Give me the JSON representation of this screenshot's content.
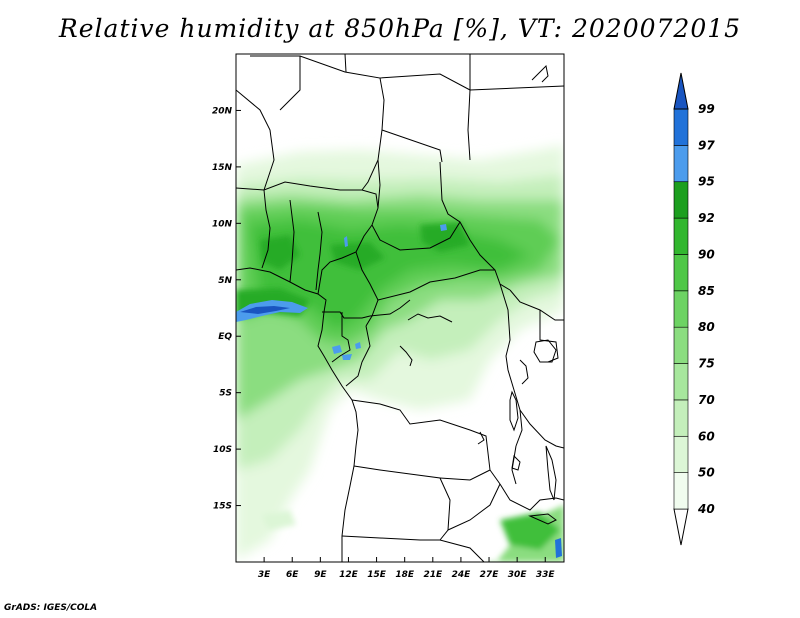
{
  "title": "Relative humidity at 850hPa [%], VT: 2020072015",
  "credit": "GrADS: IGES/COLA",
  "map": {
    "lon_range": [
      0,
      35
    ],
    "lat_range": [
      -20,
      25
    ],
    "x_ticks": [
      "3E",
      "6E",
      "9E",
      "12E",
      "15E",
      "18E",
      "21E",
      "24E",
      "27E",
      "30E",
      "33E"
    ],
    "x_tick_values": [
      3,
      6,
      9,
      12,
      15,
      18,
      21,
      24,
      27,
      30,
      33
    ],
    "y_ticks": [
      "20N",
      "15N",
      "10N",
      "5N",
      "EQ",
      "5S",
      "10S",
      "15S"
    ],
    "y_tick_values": [
      20,
      15,
      10,
      5,
      0,
      -5,
      -10,
      -15
    ]
  },
  "colorbar": {
    "levels": [
      "40",
      "50",
      "60",
      "70",
      "75",
      "80",
      "85",
      "90",
      "92",
      "95",
      "97",
      "99"
    ],
    "colors": [
      "#f1fcef",
      "#dcf6d6",
      "#c4efbb",
      "#a7e79d",
      "#8bdd80",
      "#6dd363",
      "#4fc747",
      "#32b72f",
      "#1d9f1f",
      "#4c9ced",
      "#2172d9",
      "#1955c0"
    ]
  }
}
